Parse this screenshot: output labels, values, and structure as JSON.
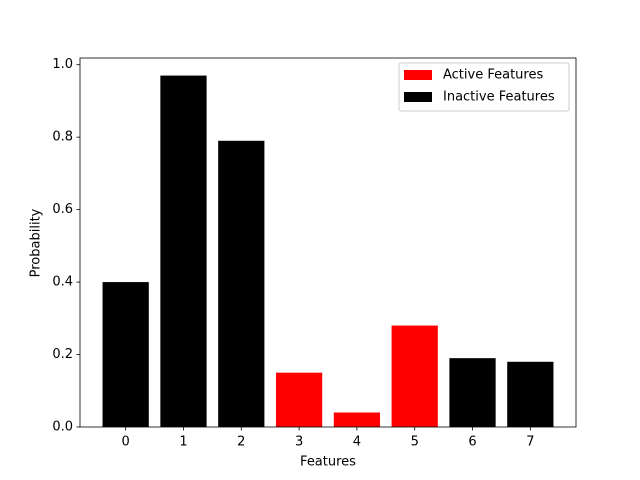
{
  "chart_data": {
    "type": "bar",
    "x_label": "Features",
    "y_label": "Probability",
    "x": [
      0,
      1,
      2,
      3,
      4,
      5,
      6,
      7
    ],
    "series": [
      {
        "name": "Active Features",
        "color": "#ff0000",
        "values": [
          null,
          null,
          null,
          0.15,
          0.04,
          0.28,
          null,
          null
        ]
      },
      {
        "name": "Inactive Features",
        "color": "#000000",
        "values": [
          0.4,
          0.97,
          0.79,
          null,
          null,
          null,
          0.19,
          0.18
        ]
      }
    ],
    "xlim": [
      -0.79,
      7.79
    ],
    "xticks": [
      0,
      1,
      2,
      3,
      4,
      5,
      6,
      7
    ],
    "ylim": [
      0,
      1.0185
    ],
    "yticks": [
      {
        "value": 0,
        "label": "0.0"
      },
      0.2,
      0.4,
      0.6,
      0.8,
      {
        "value": 1,
        "label": "1.0"
      }
    ],
    "legend": "upper right",
    "bar_width": 0.8
  }
}
